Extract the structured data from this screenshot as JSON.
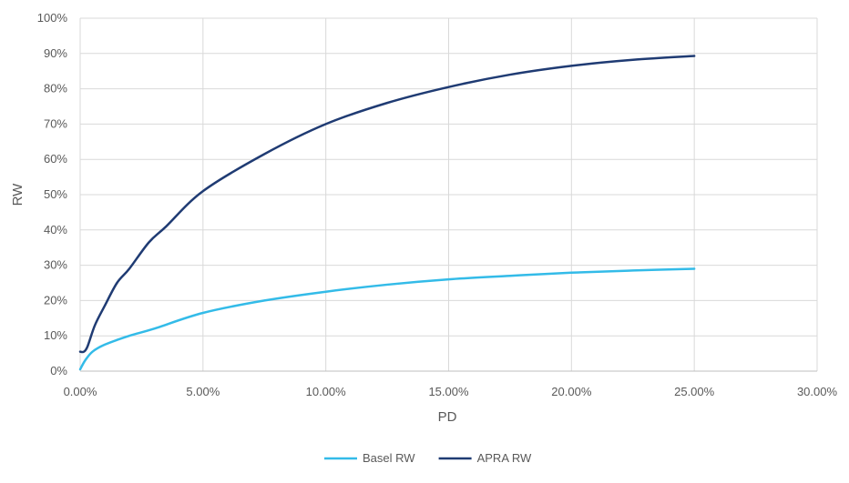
{
  "chart_data": {
    "type": "line",
    "title": "",
    "xlabel": "PD",
    "ylabel": "RW",
    "xlim": [
      0,
      0.3
    ],
    "ylim": [
      0,
      1.0
    ],
    "x_ticks": [
      0,
      0.05,
      0.1,
      0.15,
      0.2,
      0.25,
      0.3
    ],
    "x_tick_labels": [
      "0.00%",
      "5.00%",
      "10.00%",
      "15.00%",
      "20.00%",
      "25.00%",
      "30.00%"
    ],
    "y_ticks": [
      0,
      0.1,
      0.2,
      0.3,
      0.4,
      0.5,
      0.6,
      0.7,
      0.8,
      0.9,
      1.0
    ],
    "y_tick_labels": [
      "0%",
      "10%",
      "20%",
      "30%",
      "40%",
      "50%",
      "60%",
      "70%",
      "80%",
      "90%",
      "100%"
    ],
    "grid": true,
    "legend_position": "bottom",
    "series": [
      {
        "name": "Basel RW",
        "color": "#33bbe8",
        "x": [
          0,
          0.002,
          0.005,
          0.01,
          0.02,
          0.03,
          0.05,
          0.075,
          0.1,
          0.125,
          0.15,
          0.175,
          0.2,
          0.225,
          0.25
        ],
        "y": [
          0.005,
          0.03,
          0.055,
          0.075,
          0.1,
          0.12,
          0.165,
          0.2,
          0.225,
          0.245,
          0.26,
          0.27,
          0.279,
          0.285,
          0.29
        ]
      },
      {
        "name": "APRA RW",
        "color": "#1f3b73",
        "x": [
          0,
          0.0015,
          0.003,
          0.006,
          0.01,
          0.015,
          0.02,
          0.028,
          0.035,
          0.05,
          0.075,
          0.1,
          0.125,
          0.15,
          0.175,
          0.2,
          0.225,
          0.25
        ],
        "y": [
          0.055,
          0.055,
          0.07,
          0.13,
          0.185,
          0.25,
          0.29,
          0.365,
          0.41,
          0.51,
          0.615,
          0.7,
          0.76,
          0.805,
          0.84,
          0.865,
          0.882,
          0.893
        ]
      }
    ]
  }
}
